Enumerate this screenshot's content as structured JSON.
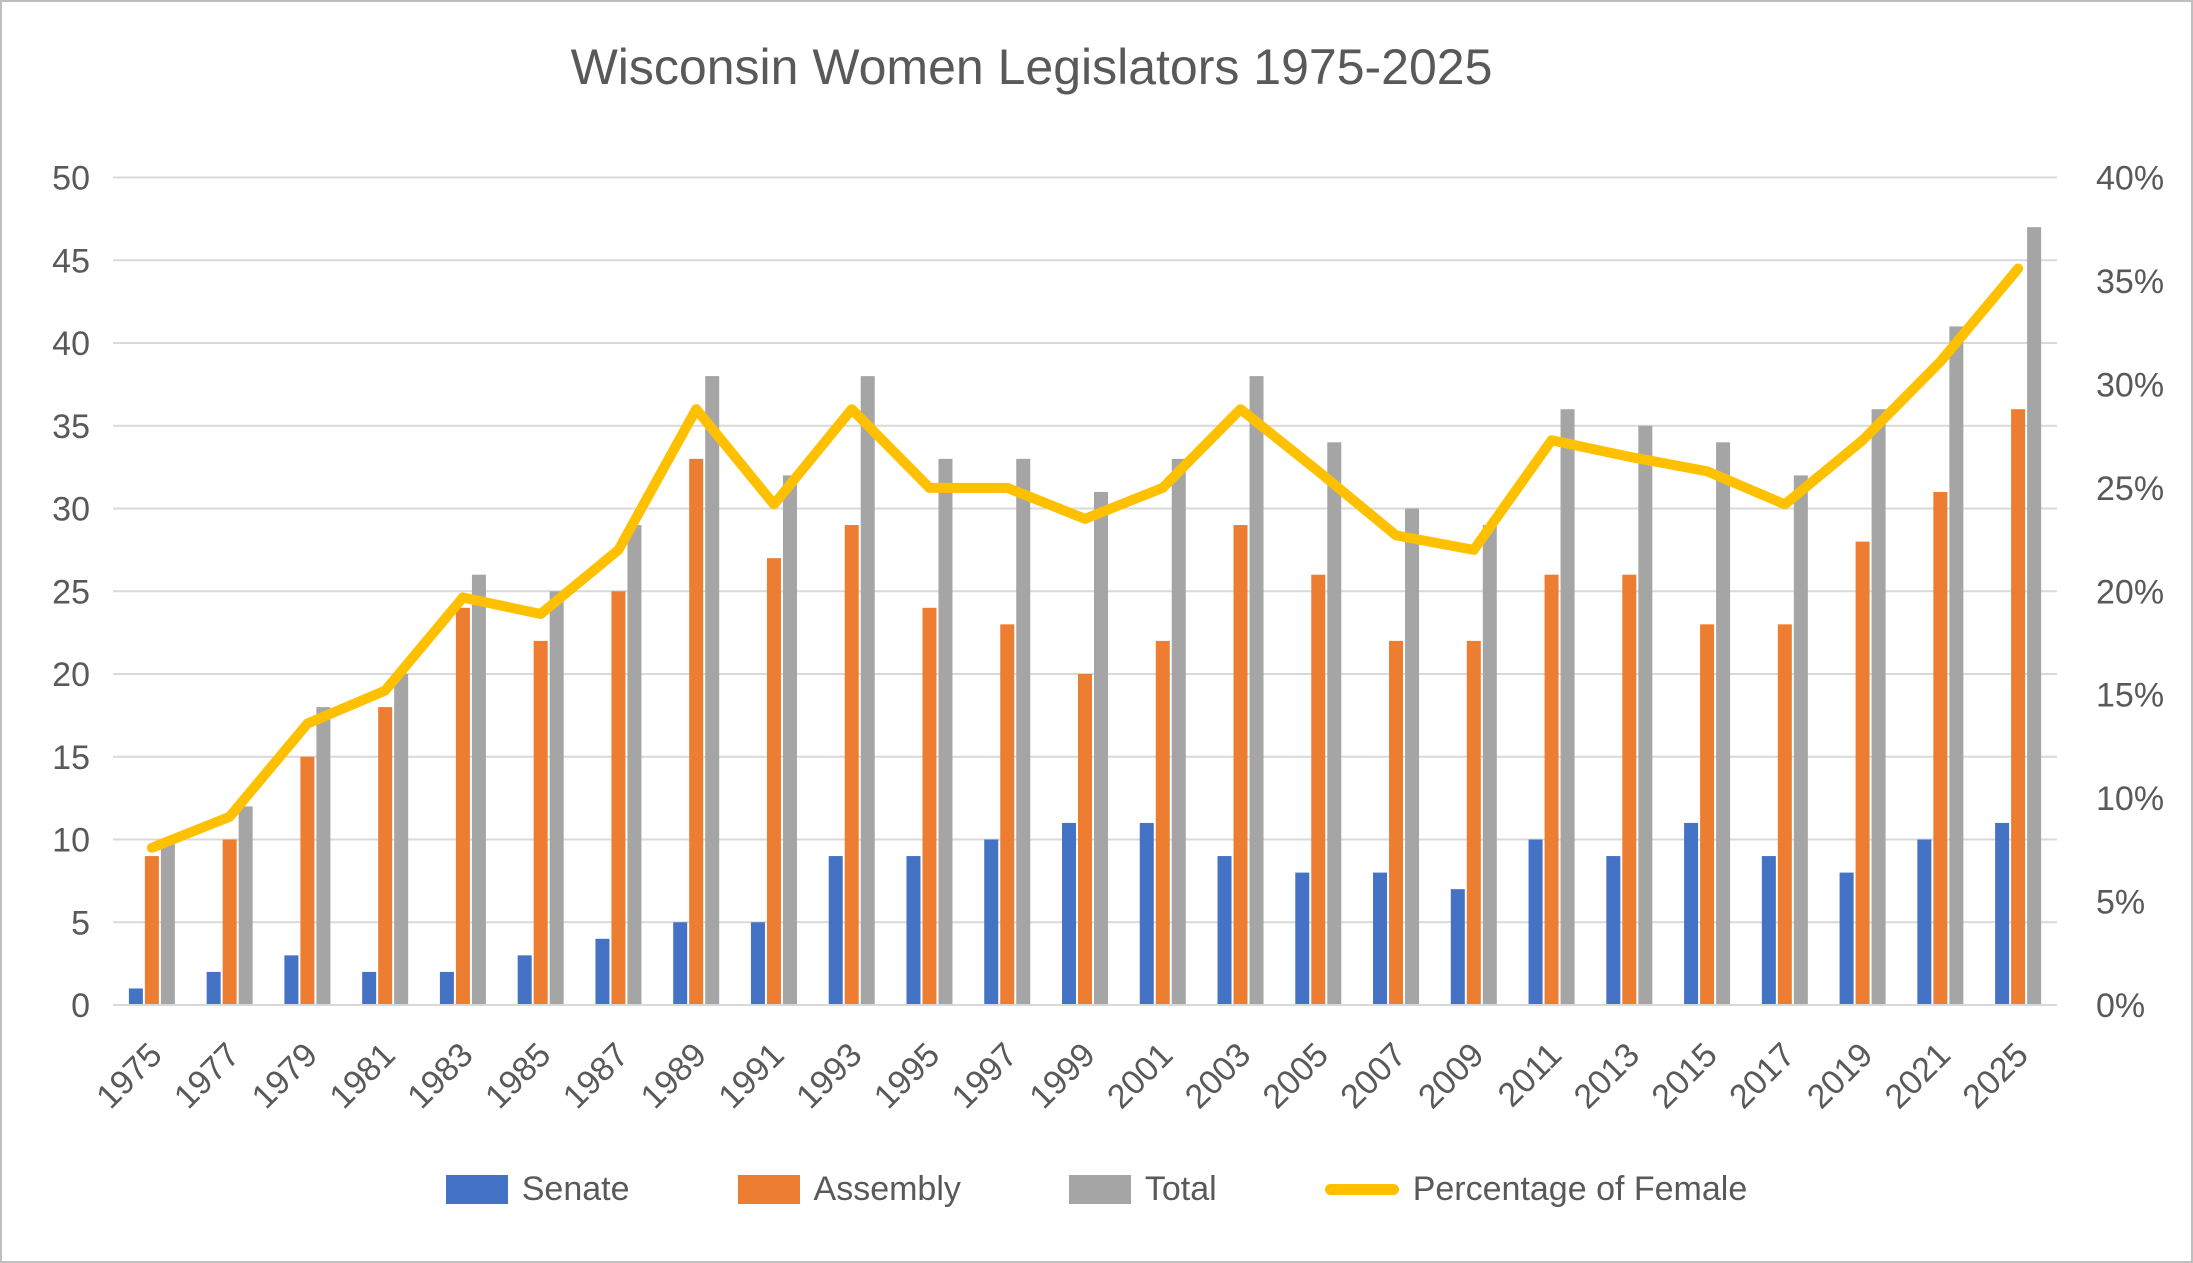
{
  "window": {
    "background": "#ffffff",
    "border_color": "#bfbfbf",
    "text_color": "#595959",
    "gridline_color": "#d9d9d9"
  },
  "chart_data": {
    "type": "combo-bar-line",
    "title": "Wisconsin Women Legislators 1975-2025",
    "categories": [
      "1975",
      "1977",
      "1979",
      "1981",
      "1983",
      "1985",
      "1987",
      "1989",
      "1991",
      "1993",
      "1995",
      "1997",
      "1999",
      "2001",
      "2003",
      "2005",
      "2007",
      "2009",
      "2011",
      "2013",
      "2015",
      "2017",
      "2019",
      "2021",
      "2025"
    ],
    "series": [
      {
        "name": "Senate",
        "type": "bar",
        "axis": "left",
        "color": "#4472C4",
        "values": [
          1,
          2,
          3,
          2,
          2,
          3,
          4,
          5,
          5,
          9,
          9,
          10,
          11,
          11,
          9,
          8,
          8,
          7,
          10,
          9,
          11,
          9,
          8,
          10,
          11
        ]
      },
      {
        "name": "Assembly",
        "type": "bar",
        "axis": "left",
        "color": "#ED7D31",
        "values": [
          9,
          10,
          15,
          18,
          24,
          22,
          25,
          33,
          27,
          29,
          24,
          23,
          20,
          22,
          29,
          26,
          22,
          22,
          26,
          26,
          23,
          23,
          28,
          31,
          36
        ]
      },
      {
        "name": "Total",
        "type": "bar",
        "axis": "left",
        "color": "#A5A5A5",
        "values": [
          10,
          12,
          18,
          20,
          26,
          25,
          29,
          38,
          32,
          38,
          33,
          33,
          31,
          33,
          38,
          34,
          30,
          29,
          36,
          35,
          34,
          32,
          36,
          41,
          47
        ]
      },
      {
        "name": "Percentage of Female",
        "type": "line",
        "axis": "right",
        "color": "#FFC000",
        "values": [
          7.6,
          9.1,
          13.6,
          15.2,
          19.7,
          18.9,
          22.0,
          28.8,
          24.2,
          28.8,
          25.0,
          25.0,
          23.5,
          25.0,
          28.8,
          25.8,
          22.7,
          22.0,
          27.3,
          26.5,
          25.8,
          24.2,
          27.3,
          31.1,
          35.6
        ]
      }
    ],
    "left_axis": {
      "min": 0,
      "max": 50,
      "step": 5,
      "tick_labels": [
        "0",
        "5",
        "10",
        "15",
        "20",
        "25",
        "30",
        "35",
        "40",
        "45",
        "50"
      ]
    },
    "right_axis": {
      "min": 0,
      "max": 40,
      "step": 5,
      "tick_labels": [
        "0%",
        "5%",
        "10%",
        "15%",
        "20%",
        "25%",
        "30%",
        "35%",
        "40%"
      ]
    },
    "grid": "horizontal-major",
    "legend_position": "bottom"
  }
}
